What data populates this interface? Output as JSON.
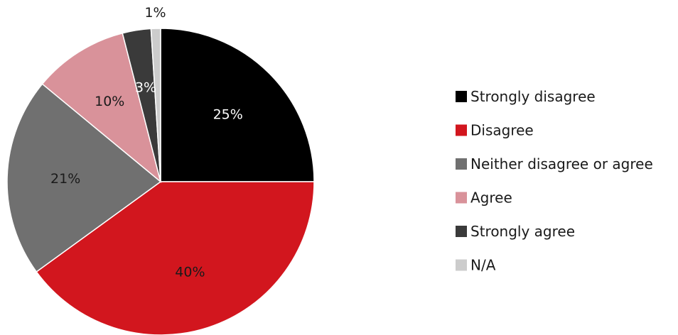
{
  "chart_data": {
    "type": "pie",
    "title": "",
    "categories": [
      "Strongly disagree",
      "Disagree",
      "Neither disagree or agree",
      "Agree",
      "Strongly agree",
      "N/A"
    ],
    "values": [
      25,
      40,
      21,
      10,
      3,
      1
    ],
    "labels": [
      "25%",
      "40%",
      "21%",
      "10%",
      "3%",
      "1%"
    ],
    "unit": "%",
    "colors": [
      "#000000",
      "#d2161e",
      "#707070",
      "#d9929a",
      "#3a3a3a",
      "#cccccc"
    ],
    "label_colors": [
      "#ffffff",
      "#1a1a1a",
      "#1a1a1a",
      "#1a1a1a",
      "#ffffff",
      "#1a1a1a"
    ],
    "start_angle_deg": 0,
    "direction": "clockwise",
    "legend": "right"
  }
}
